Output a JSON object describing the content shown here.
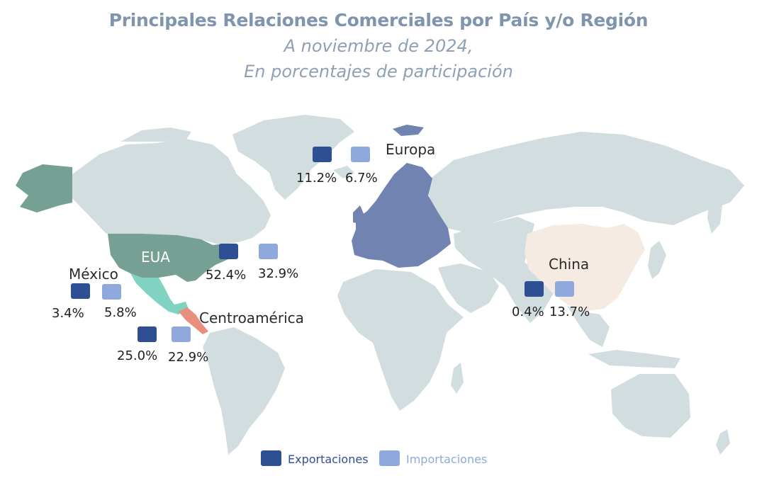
{
  "header": {
    "title": "Principales Relaciones Comerciales por País y/o Región",
    "subtitle_line1": "A noviembre de 2024,",
    "subtitle_line2": "En porcentajes de participación"
  },
  "colors": {
    "exportaciones": "#2f4f94",
    "importaciones": "#8fa9dd",
    "eua": "#76a094",
    "mexico": "#7fd3c0",
    "centroamerica": "#ea8e7e",
    "europa": "#7183b0",
    "china": "#f6ebe2",
    "land": "#d2dde0"
  },
  "regions": [
    {
      "name": "Europa",
      "exportaciones": "11.2%",
      "importaciones": "6.7%"
    },
    {
      "name": "EUA",
      "exportaciones": "52.4%",
      "importaciones": "32.9%"
    },
    {
      "name": "México",
      "exportaciones": "3.4%",
      "importaciones": "5.8%"
    },
    {
      "name": "Centroamérica",
      "exportaciones": "25.0%",
      "importaciones": "22.9%"
    },
    {
      "name": "China",
      "exportaciones": "0.4%",
      "importaciones": "13.7%"
    }
  ],
  "legend": {
    "exportaciones": "Exportaciones",
    "importaciones": "Importaciones"
  }
}
